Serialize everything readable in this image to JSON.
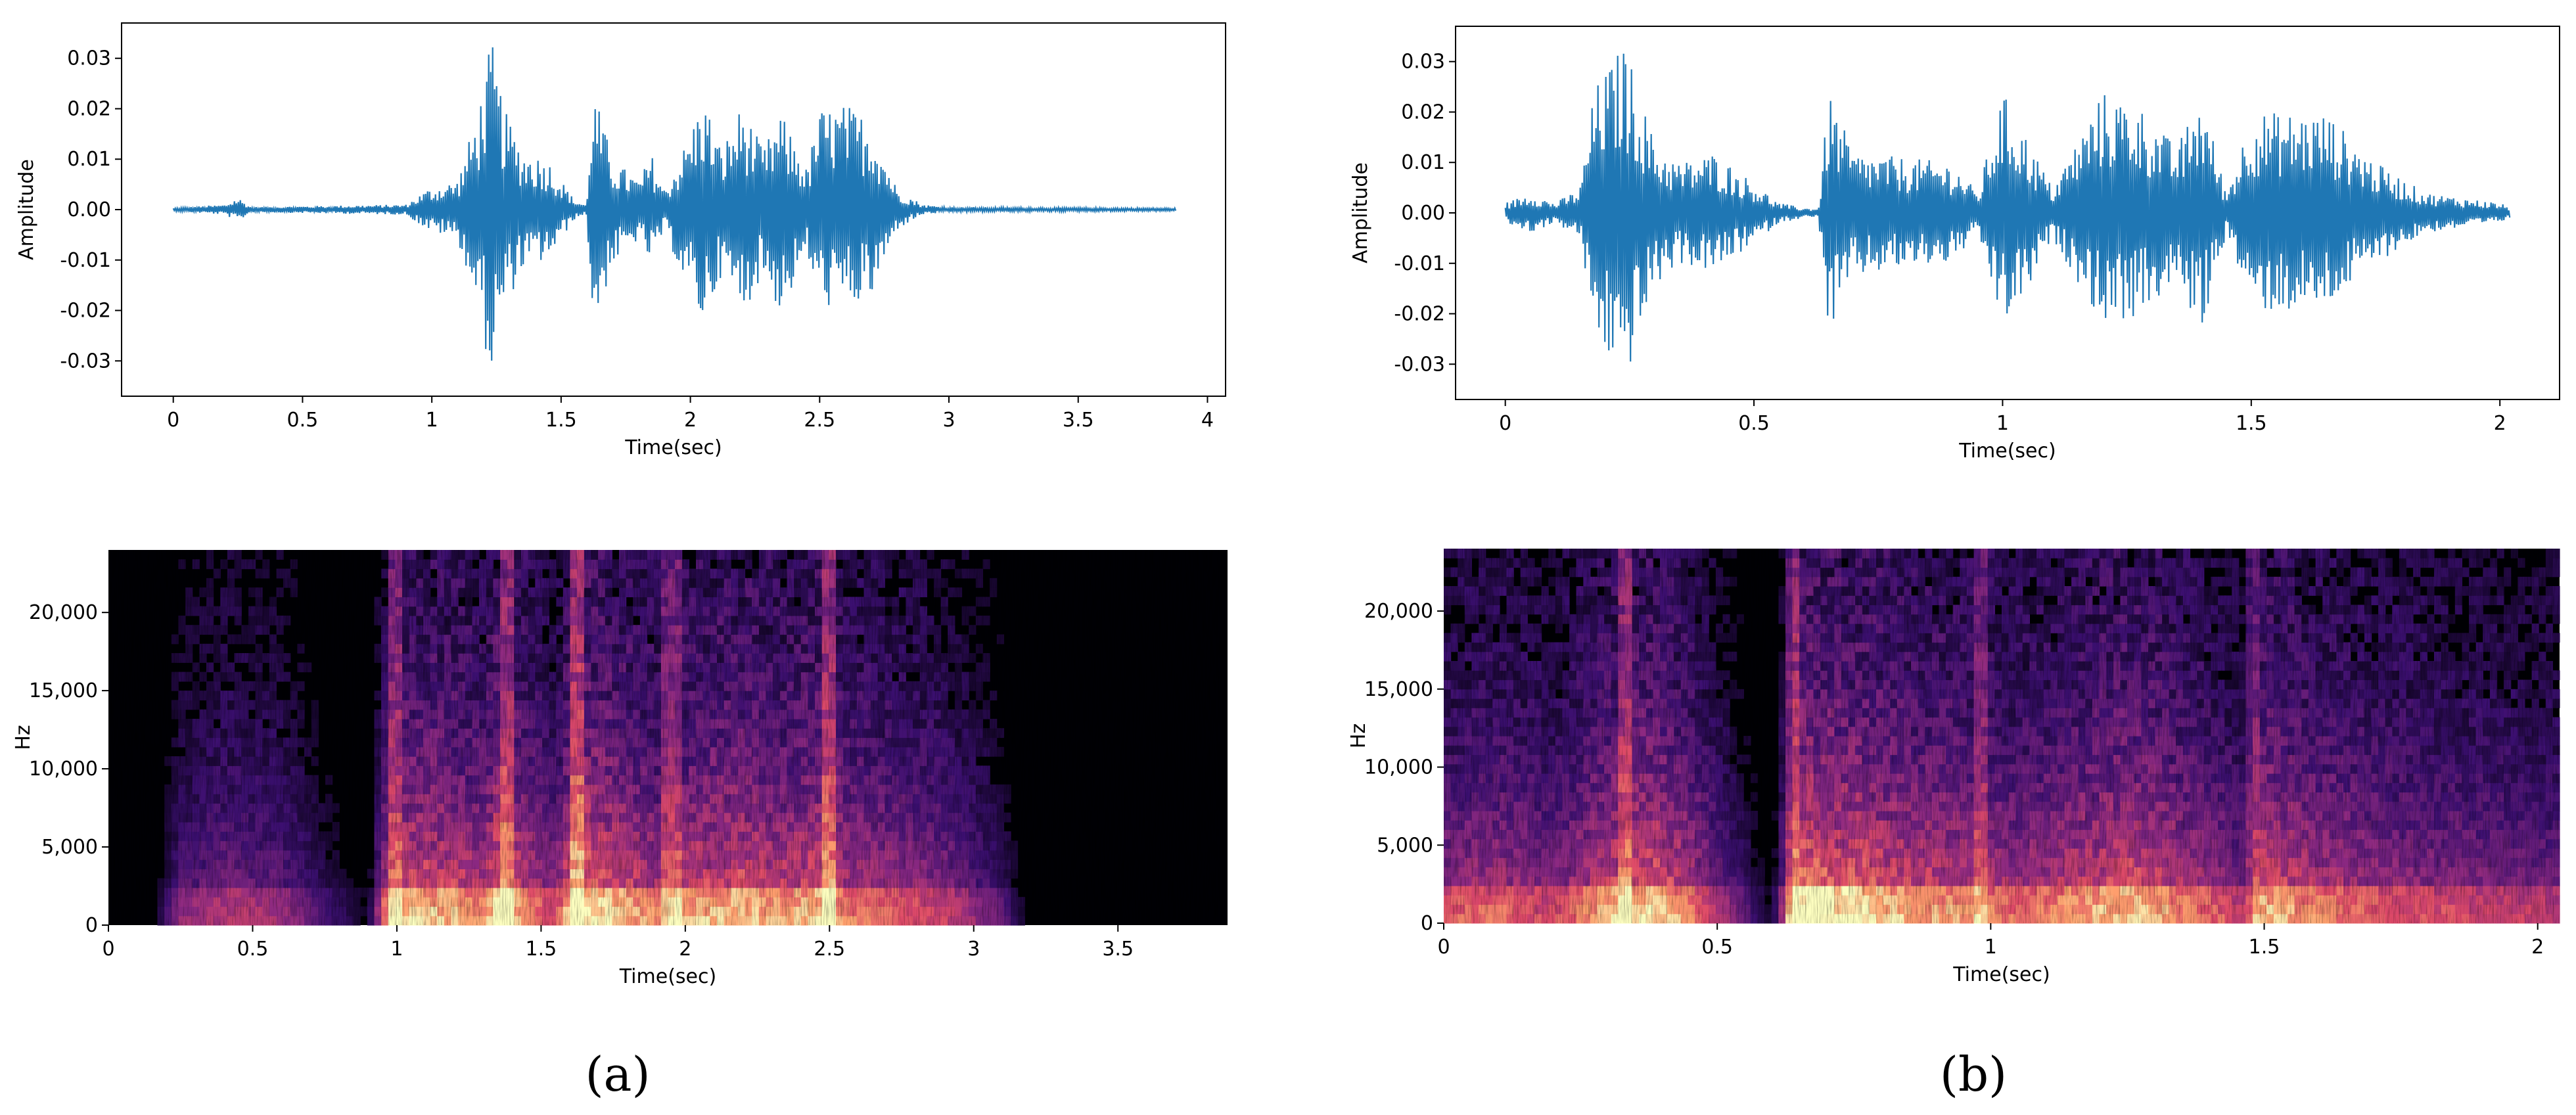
{
  "colors": {
    "waveform": "#1f77b4",
    "spectrogram_background": "#000004",
    "spectrogram_colormap": [
      "#000004",
      "#3b0f70",
      "#8c2981",
      "#de4968",
      "#fe9f6d",
      "#fcfdbf"
    ]
  },
  "panel_labels": {
    "a": "(a)",
    "b": "(b)"
  },
  "chart_data": [
    {
      "id": "a-waveform",
      "type": "line",
      "xlabel": "Time(sec)",
      "ylabel": "Amplitude",
      "xlim": [
        -0.2,
        4.07
      ],
      "ylim": [
        -0.037,
        0.037
      ],
      "xticks": [
        0,
        0.5,
        1,
        1.5,
        2,
        2.5,
        3,
        3.5,
        4
      ],
      "xtick_labels": [
        "0",
        "0.5",
        "1",
        "1.5",
        "2",
        "2.5",
        "3",
        "3.5",
        "4"
      ],
      "yticks": [
        0.03,
        0.02,
        0.01,
        0.0,
        -0.01,
        -0.02,
        -0.03
      ],
      "ytick_labels": [
        "0.03",
        "0.02",
        "0.01",
        "0.00",
        "-0.01",
        "-0.02",
        "-0.03"
      ],
      "grid": false,
      "duration": 3.88,
      "envelope": {
        "t": [
          0,
          0.2,
          0.25,
          0.3,
          0.9,
          0.98,
          1.1,
          1.18,
          1.23,
          1.28,
          1.35,
          1.45,
          1.55,
          1.6,
          1.62,
          1.7,
          1.8,
          1.85,
          1.9,
          1.98,
          2.05,
          2.12,
          2.2,
          2.28,
          2.35,
          2.42,
          2.45,
          2.5,
          2.6,
          2.7,
          2.8,
          2.9,
          3.0,
          3.88
        ],
        "upper": [
          0.0003,
          0.001,
          0.0025,
          0.0005,
          0.001,
          0.004,
          0.006,
          0.02,
          0.034,
          0.02,
          0.012,
          0.01,
          0.002,
          0.001,
          0.025,
          0.01,
          0.006,
          0.011,
          0.004,
          0.013,
          0.023,
          0.012,
          0.021,
          0.012,
          0.019,
          0.012,
          0.008,
          0.02,
          0.021,
          0.018,
          0.004,
          0.001,
          0.0005,
          0.0003
        ],
        "lower": [
          -0.0003,
          -0.001,
          -0.0025,
          -0.0005,
          -0.001,
          -0.004,
          -0.006,
          -0.02,
          -0.034,
          -0.02,
          -0.012,
          -0.01,
          -0.002,
          -0.001,
          -0.025,
          -0.011,
          -0.006,
          -0.011,
          -0.004,
          -0.015,
          -0.023,
          -0.013,
          -0.021,
          -0.013,
          -0.021,
          -0.013,
          -0.009,
          -0.019,
          -0.02,
          -0.018,
          -0.004,
          -0.001,
          -0.0005,
          -0.0003
        ]
      }
    },
    {
      "id": "a-spectrogram",
      "type": "heatmap",
      "xlabel": "Time(sec)",
      "ylabel": "Hz",
      "xlim": [
        0,
        3.88
      ],
      "ylim": [
        0,
        24000
      ],
      "xticks": [
        0,
        0.5,
        1,
        1.5,
        2,
        2.5,
        3,
        3.5
      ],
      "xtick_labels": [
        "0",
        "0.5",
        "1",
        "1.5",
        "2",
        "2.5",
        "3",
        "3.5"
      ],
      "yticks": [
        0,
        5000,
        10000,
        15000,
        20000
      ],
      "ytick_labels": [
        "0",
        "5,000",
        "10,000",
        "15,000",
        "20,000"
      ],
      "grid": false,
      "duration": 3.88,
      "energy": {
        "t": [
          0,
          0.15,
          0.25,
          0.4,
          0.6,
          0.75,
          0.9,
          0.97,
          1.05,
          1.2,
          1.3,
          1.35,
          1.45,
          1.55,
          1.62,
          1.65,
          1.75,
          1.9,
          2.05,
          2.2,
          2.3,
          2.4,
          2.5,
          2.55,
          2.7,
          2.9,
          3.1,
          3.2,
          3.88
        ],
        "e": [
          0,
          0.05,
          0.4,
          0.5,
          0.45,
          0.25,
          0.1,
          0.75,
          0.85,
          0.8,
          0.7,
          0.95,
          0.75,
          0.55,
          1.0,
          0.95,
          0.85,
          0.7,
          0.8,
          0.85,
          0.75,
          0.8,
          0.9,
          0.7,
          0.65,
          0.55,
          0.3,
          0.05,
          0
        ]
      },
      "vertical_streaks": [
        1.0,
        1.38,
        1.63,
        1.95,
        2.5
      ]
    },
    {
      "id": "b-waveform",
      "type": "line",
      "xlabel": "Time(sec)",
      "ylabel": "Amplitude",
      "xlim": [
        -0.1,
        2.12
      ],
      "ylim": [
        -0.037,
        0.037
      ],
      "xticks": [
        0,
        0.5,
        1,
        1.5,
        2
      ],
      "xtick_labels": [
        "0",
        "0.5",
        "1",
        "1.5",
        "2"
      ],
      "yticks": [
        0.03,
        0.02,
        0.01,
        0.0,
        -0.01,
        -0.02,
        -0.03
      ],
      "ytick_labels": [
        "0.03",
        "0.02",
        "0.01",
        "0.00",
        "-0.01",
        "-0.02",
        "-0.03"
      ],
      "grid": false,
      "duration": 2.02,
      "envelope": {
        "t": [
          0,
          0.05,
          0.1,
          0.15,
          0.18,
          0.24,
          0.3,
          0.35,
          0.42,
          0.5,
          0.55,
          0.6,
          0.63,
          0.65,
          0.7,
          0.8,
          0.9,
          0.95,
          1.0,
          1.05,
          1.1,
          1.2,
          1.27,
          1.35,
          1.4,
          1.45,
          1.5,
          1.55,
          1.65,
          1.75,
          1.85,
          2.0,
          2.02
        ],
        "upper": [
          0.002,
          0.004,
          0.002,
          0.005,
          0.025,
          0.034,
          0.014,
          0.01,
          0.012,
          0.006,
          0.002,
          0.001,
          0.001,
          0.024,
          0.012,
          0.011,
          0.01,
          0.004,
          0.024,
          0.015,
          0.005,
          0.024,
          0.022,
          0.013,
          0.024,
          0.004,
          0.02,
          0.02,
          0.02,
          0.01,
          0.004,
          0.002,
          0.001
        ],
        "lower": [
          -0.002,
          -0.004,
          -0.002,
          -0.005,
          -0.025,
          -0.034,
          -0.015,
          -0.01,
          -0.012,
          -0.006,
          -0.002,
          -0.001,
          -0.001,
          -0.025,
          -0.013,
          -0.011,
          -0.01,
          -0.004,
          -0.023,
          -0.016,
          -0.005,
          -0.022,
          -0.021,
          -0.014,
          -0.024,
          -0.004,
          -0.019,
          -0.02,
          -0.019,
          -0.01,
          -0.004,
          -0.002,
          -0.001
        ]
      }
    },
    {
      "id": "b-spectrogram",
      "type": "heatmap",
      "xlabel": "Time(sec)",
      "ylabel": "Hz",
      "xlim": [
        0,
        2.04
      ],
      "ylim": [
        0,
        24000
      ],
      "xticks": [
        0,
        0.5,
        1,
        1.5,
        2
      ],
      "xtick_labels": [
        "0",
        "0.5",
        "1",
        "1.5",
        "2"
      ],
      "yticks": [
        0,
        5000,
        10000,
        15000,
        20000
      ],
      "ytick_labels": [
        "0",
        "5,000",
        "10,000",
        "15,000",
        "20,000"
      ],
      "grid": false,
      "duration": 2.04,
      "energy": {
        "t": [
          0,
          0.1,
          0.2,
          0.3,
          0.38,
          0.45,
          0.55,
          0.6,
          0.65,
          0.75,
          0.85,
          0.95,
          1.05,
          1.15,
          1.25,
          1.3,
          1.4,
          1.47,
          1.5,
          1.6,
          1.75,
          1.9,
          2.04
        ],
        "e": [
          0.6,
          0.65,
          0.55,
          0.8,
          0.9,
          0.7,
          0.3,
          0.1,
          1.0,
          0.9,
          0.8,
          0.75,
          0.65,
          0.75,
          0.85,
          0.8,
          0.65,
          0.5,
          0.85,
          0.7,
          0.6,
          0.55,
          0.5
        ]
      },
      "vertical_streaks": [
        0.33,
        0.64,
        0.98,
        1.48
      ]
    }
  ]
}
